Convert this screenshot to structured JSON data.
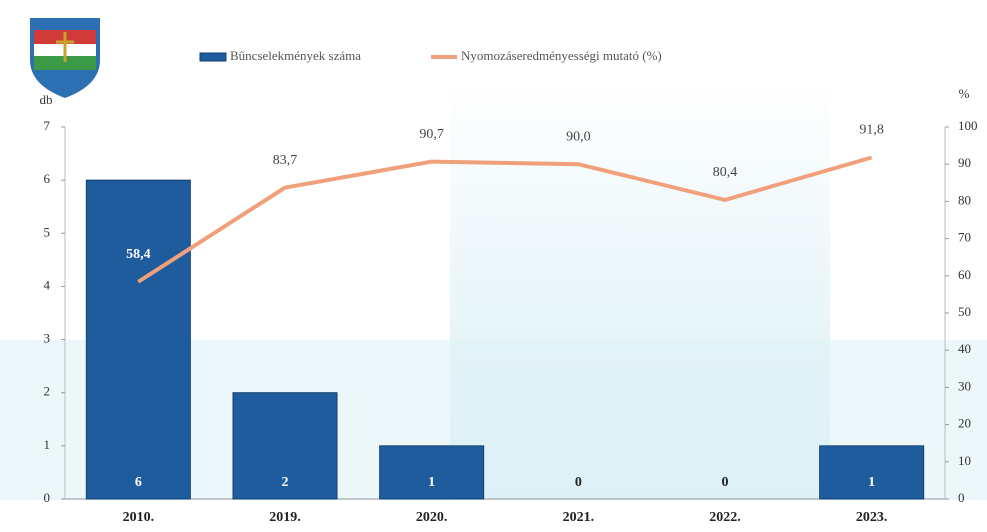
{
  "chart_data": {
    "type": "combo",
    "y_label": "db",
    "y2_label": "%",
    "categories": [
      "2010.",
      "2019.",
      "2020.",
      "2021.",
      "2022.",
      "2023."
    ],
    "series": [
      {
        "name": "Bűncselekmények száma",
        "type": "bar",
        "color": "#1f5c9e",
        "axis": "y",
        "values": [
          6,
          2,
          1,
          0,
          0,
          1
        ]
      },
      {
        "name": "Nyomozáseredményességi mutató (%)",
        "type": "line",
        "color": "#f0a07a",
        "axis": "y2",
        "values": [
          58.4,
          83.7,
          90.7,
          90.0,
          80.4,
          91.8
        ],
        "value_labels": [
          "58,4",
          "83,7",
          "90,7",
          "90,0",
          "80,4",
          "91,8"
        ]
      }
    ],
    "ylim": [
      0,
      7
    ],
    "yticks": [
      0,
      1,
      2,
      3,
      4,
      5,
      6,
      7
    ],
    "y2lim": [
      0,
      100
    ],
    "y2ticks": [
      0,
      10,
      20,
      30,
      40,
      50,
      60,
      70,
      80,
      90,
      100
    ]
  }
}
